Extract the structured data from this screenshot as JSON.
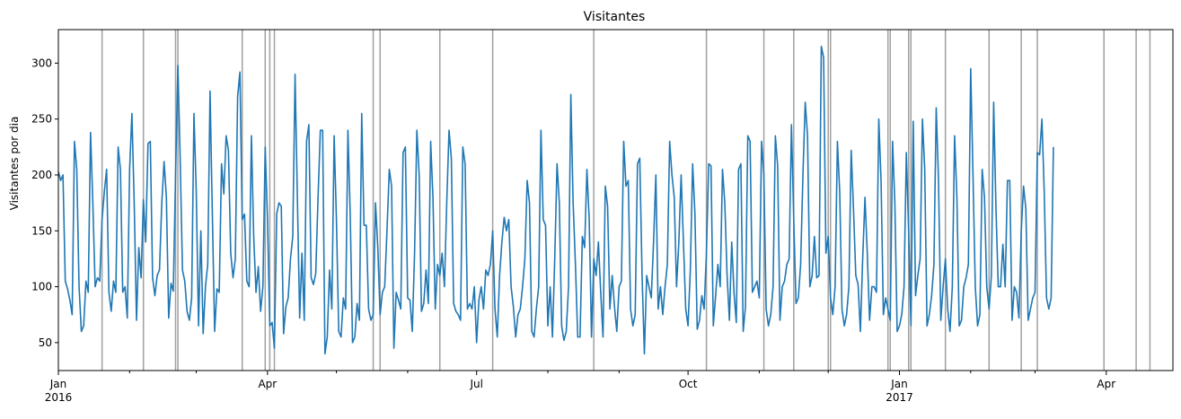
{
  "chart_data": {
    "type": "line",
    "title": "Visitantes",
    "xlabel": "",
    "ylabel": "Visitantes por dia",
    "x_range": [
      "2016-01-01",
      "2017-04-30"
    ],
    "ylim": [
      25,
      330
    ],
    "grid": false,
    "legend": "none",
    "line_color": "#1f77b4",
    "marker_color": "#a0a0a0",
    "y_ticks": [
      50,
      100,
      150,
      200,
      250,
      300
    ],
    "x_major_ticks": [
      {
        "date": "2016-01-01",
        "label": "Jan",
        "sublabel": "2016"
      },
      {
        "date": "2016-04-01",
        "label": "Apr",
        "sublabel": ""
      },
      {
        "date": "2016-07-01",
        "label": "Jul",
        "sublabel": ""
      },
      {
        "date": "2016-10-01",
        "label": "Oct",
        "sublabel": ""
      },
      {
        "date": "2017-01-01",
        "label": "Jan",
        "sublabel": "2017"
      },
      {
        "date": "2017-04-01",
        "label": "Apr",
        "sublabel": ""
      }
    ],
    "x_minor_ticks": [
      "2016-02-01",
      "2016-03-01",
      "2016-05-01",
      "2016-06-01",
      "2016-08-01",
      "2016-09-01",
      "2016-11-01",
      "2016-12-01",
      "2017-02-01",
      "2017-03-01"
    ],
    "vertical_markers": [
      "2016-01-20",
      "2016-02-07",
      "2016-02-21",
      "2016-02-22",
      "2016-03-21",
      "2016-03-31",
      "2016-04-02",
      "2016-04-04",
      "2016-05-17",
      "2016-05-20",
      "2016-06-15",
      "2016-07-08",
      "2016-08-21",
      "2016-10-09",
      "2016-11-03",
      "2016-11-16",
      "2016-12-01",
      "2016-12-02",
      "2016-12-27",
      "2016-12-28",
      "2017-01-05",
      "2017-01-06",
      "2017-01-21",
      "2017-02-09",
      "2017-02-23",
      "2017-03-02",
      "2017-03-31",
      "2017-04-14",
      "2017-04-20"
    ],
    "series": [
      {
        "name": "",
        "start": "2016-01-01",
        "values": [
          203,
          195,
          200,
          105,
          98,
          88,
          75,
          230,
          205,
          100,
          60,
          65,
          105,
          95,
          238,
          175,
          100,
          108,
          105,
          160,
          185,
          205,
          95,
          78,
          105,
          95,
          225,
          205,
          95,
          100,
          72,
          205,
          255,
          175,
          70,
          135,
          108,
          178,
          140,
          228,
          230,
          108,
          92,
          110,
          115,
          175,
          212,
          180,
          72,
          103,
          96,
          200,
          298,
          215,
          115,
          105,
          78,
          70,
          90,
          255,
          185,
          65,
          150,
          58,
          100,
          120,
          275,
          165,
          60,
          98,
          95,
          210,
          183,
          235,
          222,
          130,
          108,
          125,
          270,
          292,
          160,
          165,
          105,
          100,
          235,
          145,
          95,
          118,
          78,
          100,
          225,
          160,
          65,
          68,
          45,
          165,
          175,
          172,
          58,
          82,
          90,
          125,
          145,
          290,
          180,
          72,
          130,
          70,
          230,
          245,
          108,
          102,
          112,
          180,
          240,
          240,
          40,
          55,
          115,
          80,
          235,
          160,
          60,
          55,
          90,
          80,
          240,
          165,
          50,
          55,
          85,
          70,
          255,
          155,
          155,
          80,
          70,
          75,
          175,
          135,
          75,
          95,
          100,
          150,
          205,
          190,
          45,
          95,
          88,
          80,
          220,
          225,
          90,
          88,
          60,
          130,
          240,
          200,
          78,
          85,
          115,
          85,
          230,
          180,
          80,
          120,
          110,
          130,
          100,
          175,
          240,
          215,
          85,
          78,
          75,
          70,
          225,
          210,
          80,
          85,
          80,
          100,
          50,
          88,
          100,
          80,
          115,
          110,
          120,
          150,
          80,
          55,
          110,
          140,
          162,
          150,
          160,
          100,
          82,
          55,
          75,
          80,
          100,
          125,
          195,
          175,
          60,
          55,
          80,
          100,
          240,
          160,
          155,
          65,
          100,
          55,
          125,
          210,
          175,
          65,
          52,
          60,
          100,
          272,
          175,
          120,
          55,
          55,
          145,
          135,
          205,
          160,
          55,
          125,
          110,
          140,
          95,
          55,
          190,
          172,
          80,
          110,
          82,
          60,
          100,
          105,
          230,
          190,
          195,
          80,
          65,
          75,
          210,
          215,
          110,
          40,
          110,
          100,
          90,
          140,
          200,
          80,
          100,
          75,
          100,
          120,
          230,
          200,
          180,
          100,
          140,
          200,
          140,
          80,
          65,
          115,
          210,
          165,
          62,
          70,
          92,
          80,
          130,
          210,
          208,
          65,
          92,
          120,
          100,
          205,
          175,
          110,
          70,
          140,
          95,
          68,
          205,
          210,
          60,
          82,
          235,
          230,
          95,
          100,
          105,
          90,
          230,
          200,
          80,
          65,
          75,
          100,
          235,
          208,
          70,
          100,
          105,
          120,
          125,
          245,
          160,
          85,
          90,
          120,
          200,
          265,
          235,
          100,
          110,
          145,
          108,
          110,
          315,
          305,
          130,
          145,
          90,
          75,
          100,
          230,
          185,
          80,
          65,
          75,
          100,
          222,
          170,
          110,
          102,
          60,
          125,
          180,
          130,
          70,
          100,
          100,
          95,
          250,
          195,
          75,
          90,
          80,
          70,
          230,
          175,
          60,
          65,
          75,
          100,
          220,
          150,
          65,
          248,
          92,
          110,
          125,
          250,
          205,
          65,
          75,
          92,
          120,
          260,
          195,
          70,
          100,
          125,
          80,
          60,
          100,
          235,
          180,
          65,
          70,
          100,
          108,
          120,
          295,
          200,
          100,
          65,
          75,
          205,
          180,
          100,
          80,
          110,
          265,
          170,
          100,
          100,
          138,
          100,
          195,
          195,
          70,
          100,
          95,
          72,
          150,
          190,
          170,
          70,
          80,
          90,
          95,
          220,
          218,
          250,
          185,
          90,
          80,
          90,
          225
        ]
      }
    ]
  }
}
